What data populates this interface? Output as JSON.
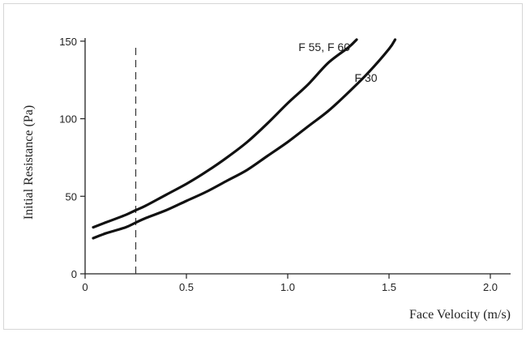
{
  "chart_data": {
    "type": "line",
    "title": "",
    "xlabel": "Face Velocity  (m/s)",
    "ylabel": "Initial Resistance  (Pa)",
    "xlim": [
      0,
      2.1
    ],
    "ylim": [
      0,
      152
    ],
    "xticks": [
      "0",
      "0.5",
      "1.0",
      "1.5",
      "2.0"
    ],
    "yticks": [
      "0",
      "50",
      "100",
      "150"
    ],
    "grid": false,
    "legend": "none",
    "reference_line": {
      "x": 0.25,
      "style": "dashed"
    },
    "series": [
      {
        "name": "F 55, F 60",
        "x": [
          0.04,
          0.1,
          0.2,
          0.25,
          0.3,
          0.4,
          0.5,
          0.6,
          0.7,
          0.8,
          0.9,
          1.0,
          1.1,
          1.2,
          1.3,
          1.34
        ],
        "y": [
          30,
          33,
          38,
          41,
          44,
          51,
          58,
          66,
          75,
          85,
          97,
          110,
          122,
          136,
          146,
          151
        ]
      },
      {
        "name": "F 30",
        "x": [
          0.04,
          0.1,
          0.2,
          0.25,
          0.3,
          0.4,
          0.5,
          0.6,
          0.7,
          0.8,
          0.9,
          1.0,
          1.1,
          1.2,
          1.3,
          1.4,
          1.5,
          1.53
        ],
        "y": [
          23,
          26,
          30,
          33,
          36,
          41,
          47,
          53,
          60,
          67,
          76,
          85,
          95,
          105,
          117,
          130,
          145,
          151
        ]
      }
    ]
  }
}
